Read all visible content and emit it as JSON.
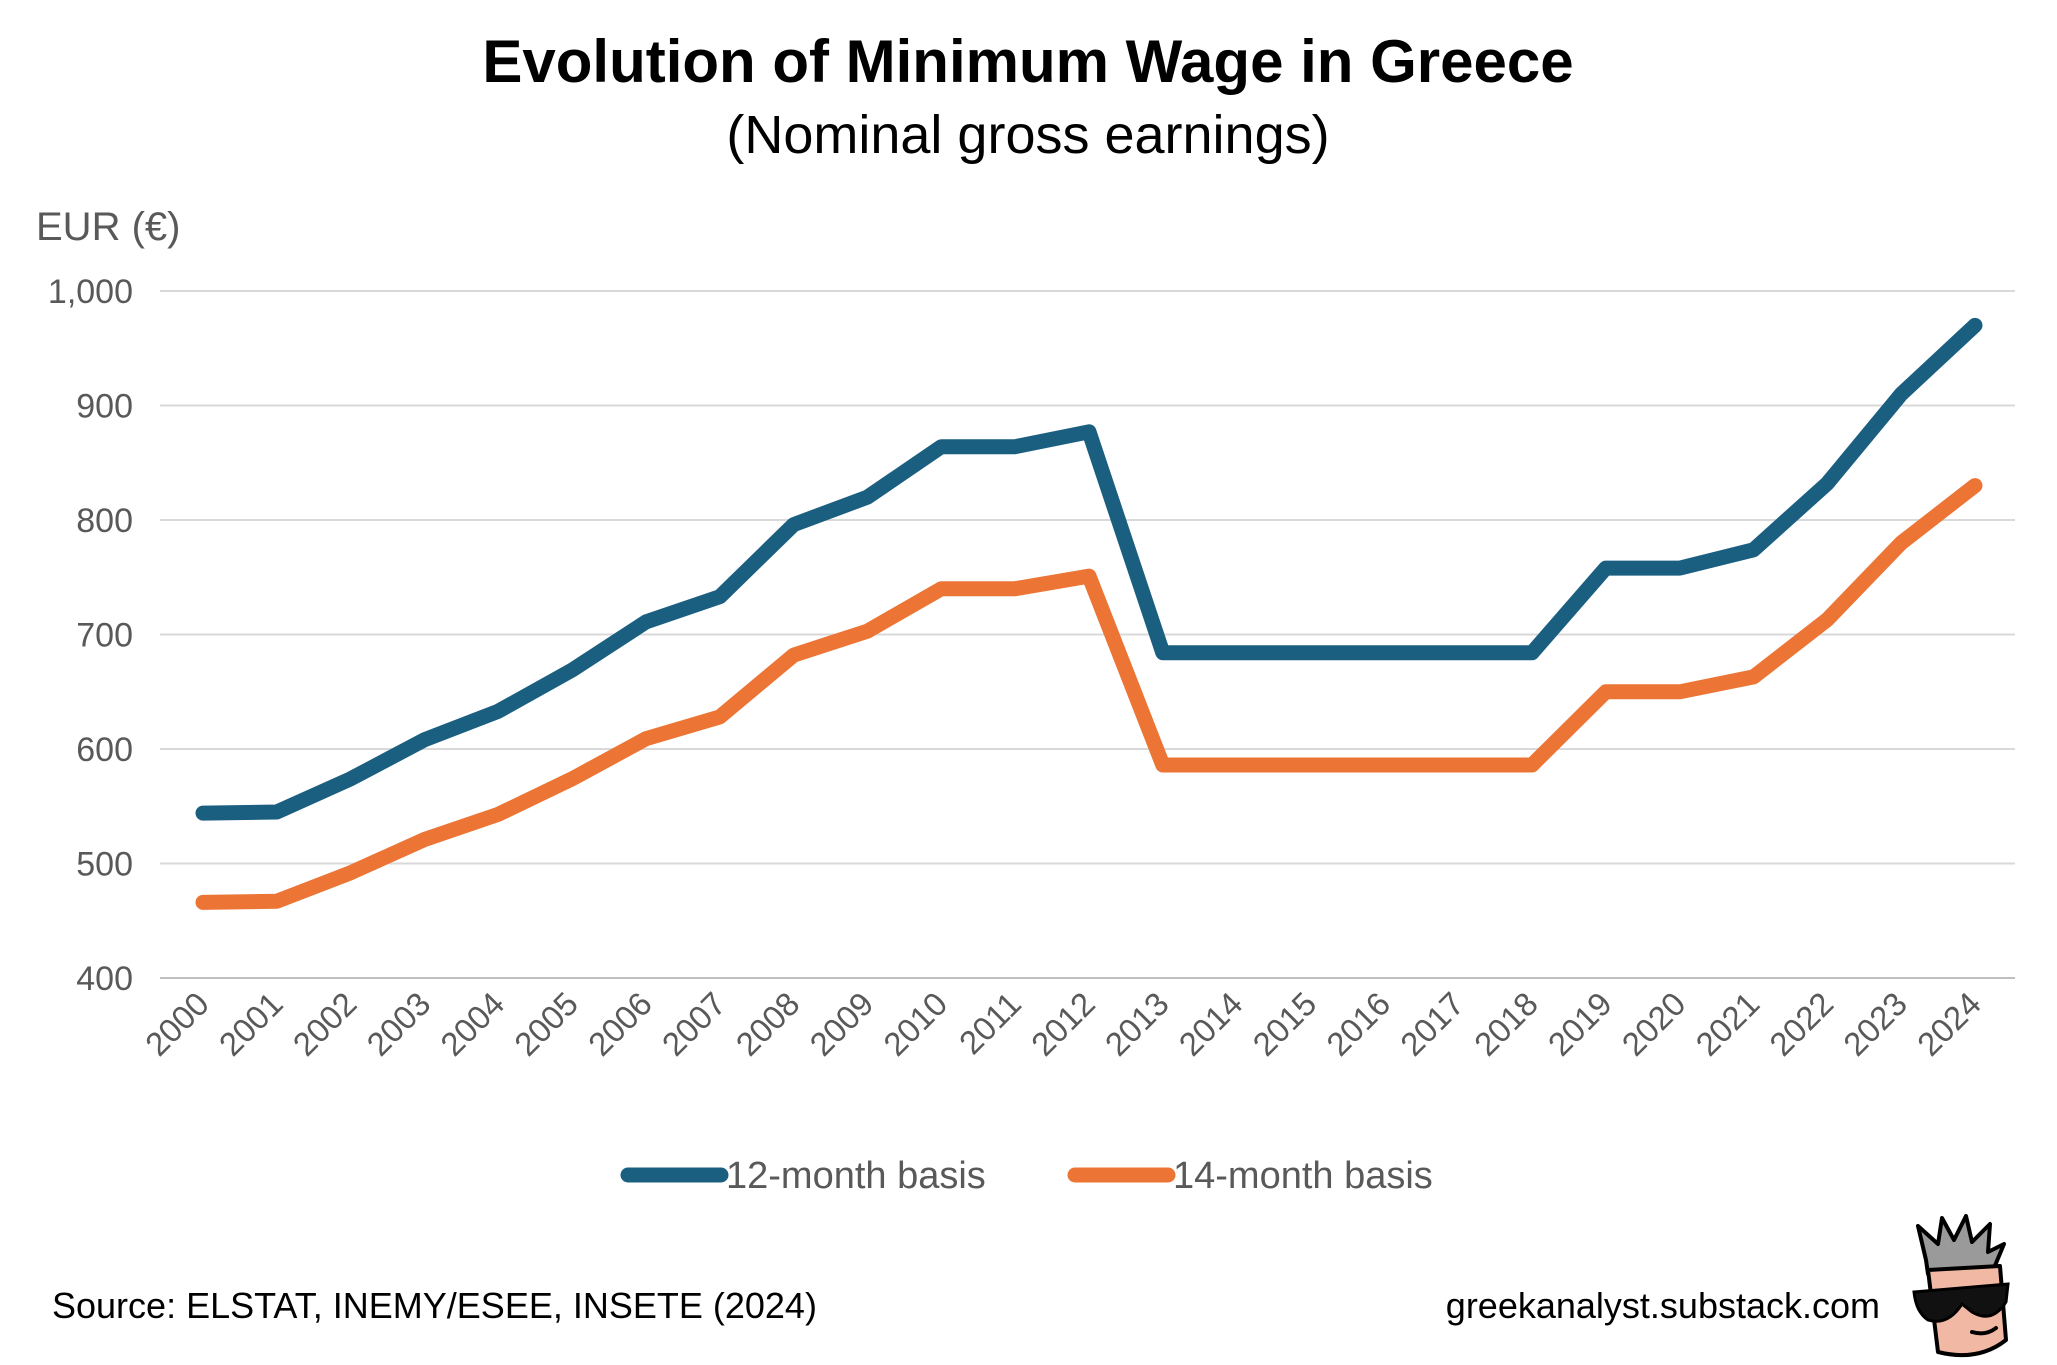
{
  "chart_data": {
    "type": "line",
    "title": "Evolution of Minimum Wage in Greece",
    "subtitle": "(Nominal gross earnings)",
    "ylabel": "EUR (€)",
    "xlabel": "",
    "ylim": [
      400,
      1000
    ],
    "yticks": [
      400,
      500,
      600,
      700,
      800,
      900,
      1000
    ],
    "ytick_labels": [
      "400",
      "500",
      "600",
      "700",
      "800",
      "900",
      "1,000"
    ],
    "x": [
      "2000",
      "2001",
      "2002",
      "2003",
      "2004",
      "2005",
      "2006",
      "2007",
      "2008",
      "2009",
      "2010",
      "2011",
      "2012",
      "2013",
      "2014",
      "2015",
      "2016",
      "2017",
      "2018",
      "2019",
      "2020",
      "2021",
      "2022",
      "2023",
      "2024"
    ],
    "grid": true,
    "legend_position": "bottom",
    "series": [
      {
        "name": "12-month basis",
        "color": "#1b5f80",
        "values": [
          544,
          545,
          574,
          608,
          633,
          669,
          711,
          733,
          796,
          820,
          864,
          864,
          877,
          684,
          684,
          684,
          684,
          684,
          684,
          758,
          758,
          774,
          832,
          910,
          970
        ]
      },
      {
        "name": "14-month basis",
        "color": "#ec7434",
        "values": [
          466,
          467,
          492,
          521,
          543,
          574,
          609,
          628,
          682,
          703,
          740,
          740,
          751,
          586,
          586,
          586,
          586,
          586,
          586,
          650,
          650,
          663,
          713,
          780,
          830
        ]
      }
    ]
  },
  "footer": {
    "source": "Source: ELSTAT, INEMY/ESEE, INSETE (2024)",
    "website": "greekanalyst.substack.com"
  },
  "logo": {
    "icon": "sunglasses-face-icon"
  }
}
